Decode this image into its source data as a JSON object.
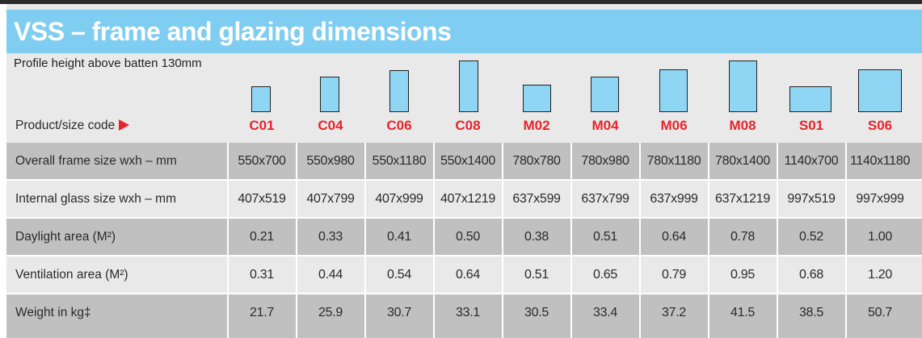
{
  "title": "VSS – frame and glazing dimensions",
  "subtitle": "Profile height above batten 130mm",
  "code_label": "Product/size code",
  "codes": [
    "C01",
    "C04",
    "C06",
    "C08",
    "M02",
    "M04",
    "M06",
    "M08",
    "S01",
    "S06"
  ],
  "rows": [
    {
      "label": "Overall frame size wxh – mm",
      "values": [
        "550x700",
        "550x980",
        "550x1180",
        "550x1400",
        "780x780",
        "780x980",
        "780x1180",
        "780x1400",
        "1140x700",
        "1140x1180"
      ]
    },
    {
      "label": "Internal glass size wxh – mm",
      "values": [
        "407x519",
        "407x799",
        "407x999",
        "407x1219",
        "637x599",
        "637x799",
        "637x999",
        "637x1219",
        "997x519",
        "997x999"
      ]
    },
    {
      "label": "Daylight area (M²)",
      "values": [
        "0.21",
        "0.33",
        "0.41",
        "0.50",
        "0.38",
        "0.51",
        "0.64",
        "0.78",
        "0.52",
        "1.00"
      ]
    },
    {
      "label": "Ventilation area (M²)",
      "values": [
        "0.31",
        "0.44",
        "0.54",
        "0.64",
        "0.51",
        "0.65",
        "0.79",
        "0.95",
        "0.68",
        "1.20"
      ]
    },
    {
      "label": "Weight in kg‡",
      "values": [
        "21.7",
        "25.9",
        "30.7",
        "33.1",
        "30.5",
        "33.4",
        "37.2",
        "41.5",
        "38.5",
        "50.7"
      ]
    }
  ],
  "colors": {
    "title_bar": "#7fcdf1",
    "code": "#e8242a",
    "glyph_fill": "#8fd5f4",
    "dark_band": "#c0c0c0",
    "light_band": "#e9e9e9"
  }
}
